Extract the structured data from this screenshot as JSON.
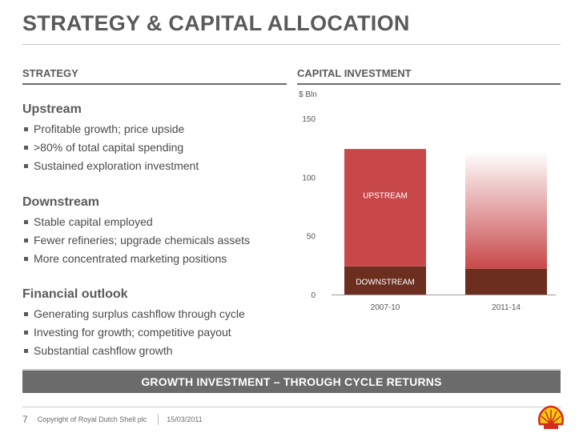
{
  "slide": {
    "title": "STRATEGY & CAPITAL ALLOCATION",
    "left_header": "STRATEGY",
    "right_header": "CAPITAL INVESTMENT",
    "groups": [
      {
        "heading": "Upstream",
        "bullets": [
          "Profitable growth; price upside",
          ">80% of total capital spending",
          "Sustained exploration investment"
        ]
      },
      {
        "heading": "Downstream",
        "bullets": [
          "Stable capital employed",
          "Fewer refineries; upgrade chemicals assets",
          "More concentrated marketing positions"
        ]
      },
      {
        "heading": "Financial outlook",
        "bullets": [
          "Generating surplus cashflow through cycle",
          "Investing for growth; competitive payout",
          "Substantial cashflow growth"
        ]
      }
    ],
    "banner": "GROWTH INVESTMENT – THROUGH CYCLE RETURNS",
    "footer": {
      "page": "7",
      "copyright": "Copyright of Royal Dutch Shell plc",
      "date": "15/03/2011"
    }
  },
  "colors": {
    "upstream": "#c8484a",
    "downstream": "#6b2e1f",
    "banner": "#6b6b6b",
    "logo_red": "#d52b1e",
    "logo_yellow": "#fbce07"
  },
  "chart_data": {
    "type": "bar",
    "stacked": true,
    "unit_label": "$ Bln",
    "categories": [
      "2007-10",
      "2011-14"
    ],
    "series": [
      {
        "name": "DOWNSTREAM",
        "values": [
          24,
          22
        ]
      },
      {
        "name": "UPSTREAM",
        "values": [
          100,
          100
        ]
      }
    ],
    "faded_top": [
      false,
      true
    ],
    "yticks": [
      0,
      50,
      100,
      150
    ],
    "ylim": [
      0,
      150
    ],
    "grid": false,
    "legend": "inline labels on first bar"
  }
}
